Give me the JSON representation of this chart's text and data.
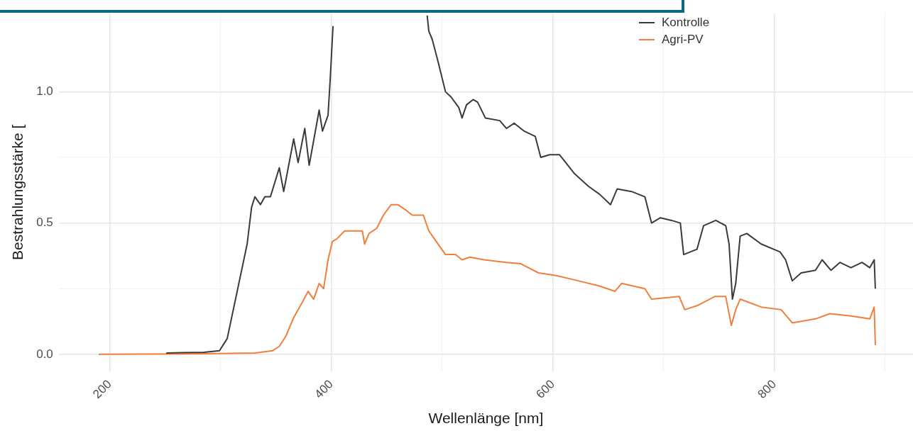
{
  "chart_data": {
    "type": "line",
    "xlabel": "Wellenlänge [nm]",
    "ylabel": "Bestrahlungsstärke [",
    "xlim": [
      154,
      925
    ],
    "ylim": [
      -0.066,
      1.3
    ],
    "xticks": [
      200,
      {
        "value": 300,
        "label": null
      },
      400,
      {
        "value": 500,
        "label": null
      },
      600,
      {
        "value": 700,
        "label": null
      },
      800,
      {
        "value": 900,
        "label": null
      }
    ],
    "yticks": [
      {
        "value": 0,
        "label": "0.0"
      },
      {
        "value": 0.25,
        "label": null
      },
      {
        "value": 0.5,
        "label": "0.5"
      },
      {
        "value": 0.75,
        "label": null
      },
      {
        "value": 1,
        "label": "1.0"
      }
    ],
    "grid": true,
    "legend": "top",
    "marker": "none",
    "line_style": "solid",
    "series": [
      {
        "name": "Kontrolle",
        "color": "#3a3a3a",
        "x": [
          251,
          285,
          299,
          306,
          314,
          324,
          328,
          331,
          336,
          340,
          345,
          353,
          357,
          366,
          370,
          376,
          380,
          386,
          389,
          392,
          397,
          399,
          401.5,
          416,
          431,
          432,
          433,
          460,
          486.5,
          488,
          491,
          496,
          503,
          508,
          515,
          518,
          522,
          528,
          532,
          539,
          552,
          558,
          565,
          574,
          584,
          589,
          597,
          606,
          619,
          632,
          642,
          652,
          658,
          671,
          683,
          689,
          697,
          707,
          715,
          718,
          724,
          730,
          736,
          747,
          756,
          759,
          762,
          765,
          769,
          775,
          788,
          805,
          810,
          816,
          824,
          837,
          843,
          851,
          859,
          869,
          879,
          886,
          890,
          891
        ],
        "values": [
          0.005,
          0.008,
          0.014,
          0.06,
          0.22,
          0.42,
          0.56,
          0.6,
          0.57,
          0.6,
          0.6,
          0.71,
          0.62,
          0.82,
          0.73,
          0.86,
          0.72,
          0.86,
          0.93,
          0.85,
          0.91,
          1.05,
          1.25,
          null,
          null,
          null,
          null,
          null,
          1.29,
          1.23,
          1.2,
          1.12,
          1.0,
          0.98,
          0.94,
          0.9,
          0.95,
          0.97,
          0.96,
          0.9,
          0.89,
          0.86,
          0.88,
          0.85,
          0.83,
          0.75,
          0.76,
          0.76,
          0.69,
          0.64,
          0.61,
          0.57,
          0.63,
          0.62,
          0.6,
          0.5,
          0.52,
          0.51,
          0.5,
          0.38,
          0.39,
          0.4,
          0.49,
          0.51,
          0.49,
          0.42,
          0.21,
          0.27,
          0.45,
          0.46,
          0.42,
          0.39,
          0.36,
          0.28,
          0.31,
          0.32,
          0.36,
          0.32,
          0.35,
          0.33,
          0.35,
          0.33,
          0.36,
          0.25
        ]
      },
      {
        "name": "Agri-PV",
        "color": "#f07f3c",
        "x": [
          190,
          285,
          331,
          347,
          353,
          359,
          366,
          374,
          379,
          384,
          389,
          393,
          397,
          401,
          405,
          412,
          421,
          428,
          430,
          434,
          441,
          447,
          454,
          460,
          467,
          473,
          483,
          488,
          493,
          503,
          512,
          518,
          525,
          538,
          558,
          571,
          587,
          603,
          623,
          642,
          656,
          662,
          683,
          689,
          714,
          719,
          730,
          746,
          756,
          761,
          765,
          769,
          788,
          806,
          816,
          837,
          850,
          869,
          886,
          890,
          891
        ],
        "values": [
          0,
          0.002,
          0.005,
          0.014,
          0.03,
          0.07,
          0.14,
          0.2,
          0.24,
          0.21,
          0.27,
          0.25,
          0.36,
          0.43,
          0.44,
          0.47,
          0.47,
          0.47,
          0.42,
          0.46,
          0.48,
          0.53,
          0.57,
          0.57,
          0.55,
          0.53,
          0.53,
          0.47,
          0.44,
          0.38,
          0.38,
          0.36,
          0.37,
          0.36,
          0.35,
          0.345,
          0.31,
          0.3,
          0.28,
          0.26,
          0.24,
          0.27,
          0.25,
          0.21,
          0.22,
          0.17,
          0.185,
          0.22,
          0.22,
          0.11,
          0.17,
          0.21,
          0.18,
          0.17,
          0.12,
          0.135,
          0.155,
          0.146,
          0.135,
          0.18,
          0.035
        ]
      }
    ]
  }
}
